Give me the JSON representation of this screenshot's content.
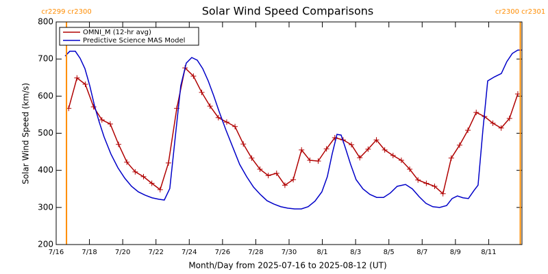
{
  "chart_data": {
    "type": "line",
    "title": "Solar Wind Speed Comparisons",
    "x_label": "Month/Day from 2025-07-16 to 2025-08-12 (UT)",
    "y_label": "Solar Wind Speed (km/s)",
    "xlim": [
      0,
      28
    ],
    "ylim": [
      200,
      800
    ],
    "xticks": [
      {
        "value": 0,
        "label": "7/16"
      },
      {
        "value": 2,
        "label": "7/18"
      },
      {
        "value": 4,
        "label": "7/20"
      },
      {
        "value": 6,
        "label": "7/22"
      },
      {
        "value": 8,
        "label": "7/24"
      },
      {
        "value": 10,
        "label": "7/26"
      },
      {
        "value": 12,
        "label": "7/28"
      },
      {
        "value": 14,
        "label": "7/30"
      },
      {
        "value": 16,
        "label": "8/1"
      },
      {
        "value": 18,
        "label": "8/3"
      },
      {
        "value": 20,
        "label": "8/5"
      },
      {
        "value": 22,
        "label": "8/7"
      },
      {
        "value": 24,
        "label": "8/9"
      },
      {
        "value": 26,
        "label": "8/11"
      }
    ],
    "yticks": [
      200,
      300,
      400,
      500,
      600,
      700,
      800
    ],
    "legend": "upper left",
    "annotations": [
      {
        "label": "cr2299 cr2300",
        "x": 0.62,
        "color": "#ff8c00"
      },
      {
        "label": "cr2300 cr2301",
        "x": 27.9,
        "color": "#ff8c00"
      }
    ],
    "series": [
      {
        "name": "OMNI_M (12-hr avg)",
        "color": "#b00000",
        "markers": true,
        "x": [
          0.75,
          1.25,
          1.75,
          2.25,
          2.75,
          3.25,
          3.75,
          4.25,
          4.75,
          5.25,
          5.75,
          6.25,
          6.75,
          7.25,
          7.75,
          8.25,
          8.75,
          9.25,
          9.75,
          10.25,
          10.75,
          11.25,
          11.75,
          12.25,
          12.75,
          13.25,
          13.75,
          14.25,
          14.75,
          15.25,
          15.75,
          16.25,
          16.75,
          17.25,
          17.75,
          18.25,
          18.75,
          19.25,
          19.75,
          20.25,
          20.75,
          21.25,
          21.75,
          22.25,
          22.75,
          23.25,
          23.75,
          24.25,
          24.75,
          25.25,
          25.75,
          26.25,
          26.75,
          27.25,
          27.75
        ],
        "values": [
          567,
          649,
          632,
          571,
          536,
          525,
          470,
          422,
          396,
          383,
          365,
          348,
          420,
          567,
          676,
          654,
          610,
          573,
          542,
          530,
          518,
          471,
          433,
          403,
          386,
          392,
          360,
          375,
          455,
          427,
          425,
          458,
          488,
          482,
          469,
          434,
          457,
          482,
          455,
          440,
          427,
          403,
          374,
          365,
          357,
          337,
          433,
          468,
          508,
          556,
          545,
          527,
          514,
          540,
          606
        ]
      },
      {
        "name": "Predictive Science MAS Model",
        "color": "#0000c8",
        "markers": false,
        "x": [
          0.54,
          0.82,
          1.15,
          1.44,
          1.73,
          2.02,
          2.31,
          2.59,
          2.88,
          3.29,
          3.71,
          4.12,
          4.53,
          4.94,
          5.35,
          5.76,
          6.17,
          6.5,
          6.83,
          7.16,
          7.49,
          7.82,
          8.15,
          8.48,
          8.81,
          9.14,
          9.47,
          9.8,
          10.21,
          10.62,
          11.03,
          11.45,
          11.86,
          12.27,
          12.68,
          13.09,
          13.5,
          13.92,
          14.33,
          14.74,
          15.15,
          15.56,
          15.97,
          16.3,
          16.59,
          16.88,
          17.13,
          17.41,
          17.7,
          18.03,
          18.44,
          18.86,
          19.27,
          19.68,
          20.09,
          20.5,
          21.0,
          21.41,
          21.82,
          22.23,
          22.64,
          23.05,
          23.47,
          23.8,
          24.12,
          24.45,
          24.78,
          25.12,
          25.36,
          25.65,
          25.94,
          26.35,
          26.76,
          27.09,
          27.42,
          27.75,
          28.0
        ],
        "values": [
          708,
          721,
          721,
          702,
          674,
          628,
          573,
          530,
          490,
          444,
          407,
          379,
          357,
          342,
          333,
          326,
          322,
          320,
          351,
          490,
          628,
          689,
          704,
          697,
          674,
          641,
          601,
          558,
          508,
          462,
          416,
          383,
          355,
          335,
          318,
          309,
          302,
          298,
          296,
          296,
          302,
          317,
          342,
          383,
          444,
          497,
          495,
          457,
          416,
          375,
          350,
          335,
          327,
          327,
          339,
          357,
          362,
          350,
          329,
          311,
          302,
          300,
          305,
          324,
          331,
          326,
          324,
          346,
          360,
          508,
          641,
          652,
          661,
          693,
          715,
          724,
          724
        ]
      }
    ]
  }
}
